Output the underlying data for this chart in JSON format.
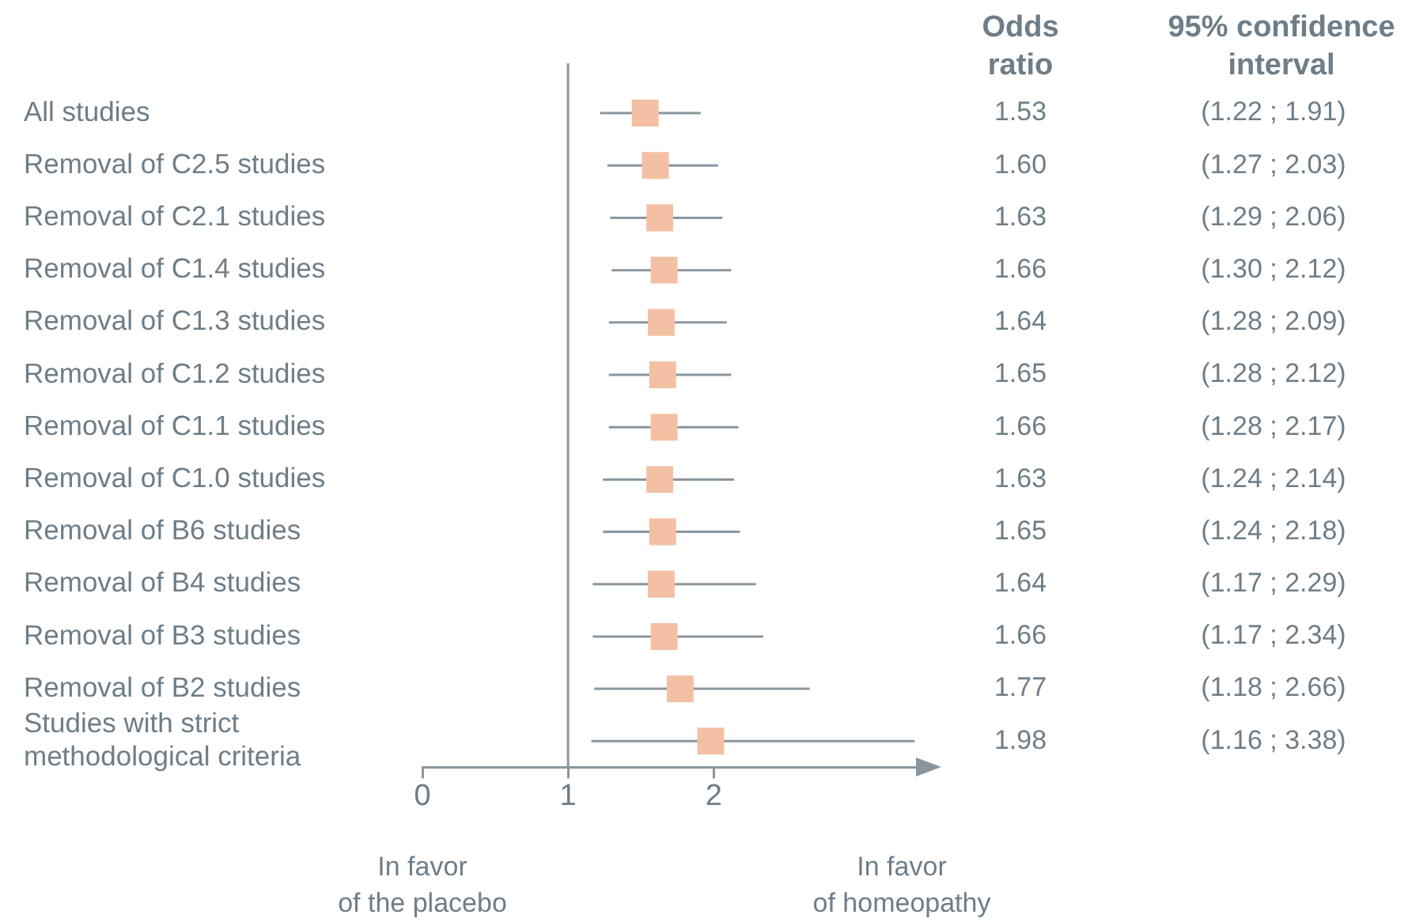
{
  "chart_data": {
    "type": "scatter",
    "orientation": "horizontal",
    "marker": "square",
    "color": "#f4c0a4",
    "categories": [
      "All studies",
      "Removal of C2.5 studies",
      "Removal of C2.1 studies",
      "Removal of C1.4 studies",
      "Removal of C1.3 studies",
      "Removal of C1.2 studies",
      "Removal of C1.1 studies",
      "Removal of C1.0 studies",
      "Removal of B6 studies",
      "Removal of B4 studies",
      "Removal of B3 studies",
      "Removal of B2 studies",
      "Studies with strict methodological criteria"
    ],
    "values": [
      1.53,
      1.6,
      1.63,
      1.66,
      1.64,
      1.65,
      1.66,
      1.63,
      1.65,
      1.64,
      1.66,
      1.77,
      1.98
    ],
    "errors": [
      [
        1.22,
        1.91
      ],
      [
        1.27,
        2.03
      ],
      [
        1.29,
        2.06
      ],
      [
        1.3,
        2.12
      ],
      [
        1.28,
        2.09
      ],
      [
        1.28,
        2.12
      ],
      [
        1.28,
        2.17
      ],
      [
        1.24,
        2.14
      ],
      [
        1.24,
        2.18
      ],
      [
        1.17,
        2.29
      ],
      [
        1.17,
        2.34
      ],
      [
        1.18,
        2.66
      ],
      [
        1.16,
        3.38
      ]
    ],
    "value_labels": [
      "1.53",
      "1.60",
      "1.63",
      "1.66",
      "1.64",
      "1.65",
      "1.66",
      "1.63",
      "1.65",
      "1.64",
      "1.66",
      "1.77",
      "1.98"
    ],
    "xlim": [
      0,
      3.4
    ],
    "xticks": [
      0,
      1,
      2
    ],
    "ref_lines": [
      {
        "axis": "x",
        "value": 1,
        "color": "#8a969f"
      }
    ],
    "annotations": [
      "Odds ratio",
      "95% confidence interval",
      "In favor of the placebo",
      "In favor of homeopathy",
      "(1.22 ; 1.91)",
      "(1.27 ; 2.03)",
      "(1.29 ; 2.06)",
      "(1.30 ; 2.12)",
      "(1.28 ; 2.09)",
      "(1.28 ; 2.12)",
      "(1.28 ; 2.17)",
      "(1.24 ; 2.14)",
      "(1.24 ; 2.18)",
      "(1.17 ; 2.29)",
      "(1.17 ; 2.34)",
      "(1.18 ; 2.66)",
      "(1.16 ; 3.38)"
    ]
  }
}
